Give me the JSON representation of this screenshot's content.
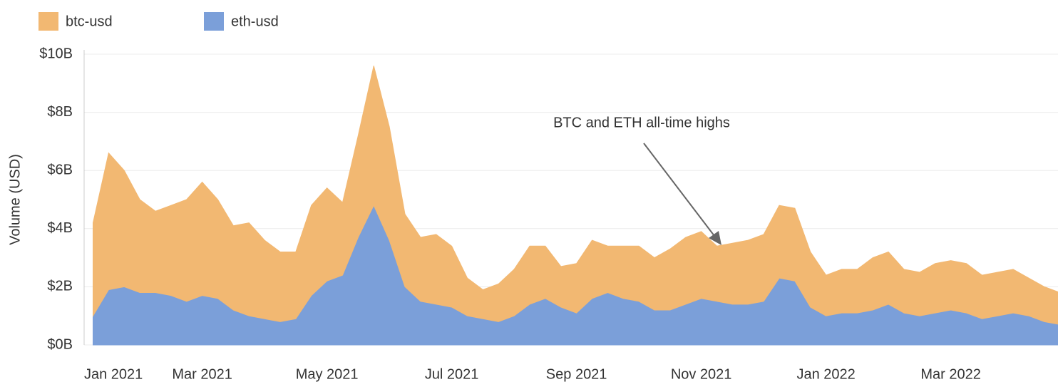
{
  "chart_data": {
    "type": "stacked-area",
    "y_label": "Volume (USD)",
    "annotation": "BTC and ETH all-time highs",
    "categories": [
      "Jan 2021",
      null,
      null,
      null,
      null,
      null,
      null,
      "Mar 2021",
      null,
      null,
      null,
      null,
      null,
      null,
      null,
      "May 2021",
      null,
      null,
      null,
      null,
      null,
      null,
      null,
      "Jul 2021",
      null,
      null,
      null,
      null,
      null,
      null,
      null,
      "Sep 2021",
      null,
      null,
      null,
      null,
      null,
      null,
      null,
      "Nov 2021",
      null,
      null,
      null,
      null,
      null,
      null,
      null,
      "Jan 2022",
      null,
      null,
      null,
      null,
      null,
      null,
      null,
      "Mar 2022",
      null,
      null,
      null,
      null,
      null,
      null,
      null
    ],
    "series": [
      {
        "name": "btc-usd",
        "color": "#f2b872",
        "values": [
          3.2,
          4.7,
          4.0,
          3.2,
          2.8,
          3.1,
          3.5,
          3.9,
          3.4,
          2.9,
          3.2,
          2.7,
          2.4,
          2.3,
          3.1,
          3.2,
          2.5,
          3.5,
          4.8,
          3.9,
          2.5,
          2.2,
          2.4,
          2.1,
          1.3,
          1.0,
          1.3,
          1.6,
          2.0,
          1.8,
          1.4,
          1.7,
          2.0,
          1.6,
          1.8,
          1.9,
          1.8,
          2.1,
          2.3,
          2.3,
          1.9,
          2.1,
          2.2,
          2.3,
          2.5,
          2.5,
          1.9,
          1.4,
          1.5,
          1.5,
          1.8,
          1.8,
          1.5,
          1.5,
          1.7,
          1.7,
          1.7,
          1.5,
          1.5,
          1.5,
          1.3,
          1.2,
          1.1
        ]
      },
      {
        "name": "eth-usd",
        "color": "#7b9fd9",
        "values": [
          1.0,
          1.9,
          2.0,
          1.8,
          1.8,
          1.7,
          1.5,
          1.7,
          1.6,
          1.2,
          1.0,
          0.9,
          0.8,
          0.9,
          1.7,
          2.2,
          2.4,
          3.7,
          4.8,
          3.6,
          2.0,
          1.5,
          1.4,
          1.3,
          1.0,
          0.9,
          0.8,
          1.0,
          1.4,
          1.6,
          1.3,
          1.1,
          1.6,
          1.8,
          1.6,
          1.5,
          1.2,
          1.2,
          1.4,
          1.6,
          1.5,
          1.4,
          1.4,
          1.5,
          2.3,
          2.2,
          1.3,
          1.0,
          1.1,
          1.1,
          1.2,
          1.4,
          1.1,
          1.0,
          1.1,
          1.2,
          1.1,
          0.9,
          1.0,
          1.1,
          1.0,
          0.8,
          0.7
        ]
      }
    ],
    "ylim": [
      0,
      10
    ],
    "yticks": [
      {
        "value": 0,
        "label": "$0B"
      },
      {
        "value": 2,
        "label": "$2B"
      },
      {
        "value": 4,
        "label": "$4B"
      },
      {
        "value": 6,
        "label": "$6B"
      },
      {
        "value": 8,
        "label": "$8B"
      },
      {
        "value": 10,
        "label": "$10B"
      }
    ],
    "grid": true
  }
}
